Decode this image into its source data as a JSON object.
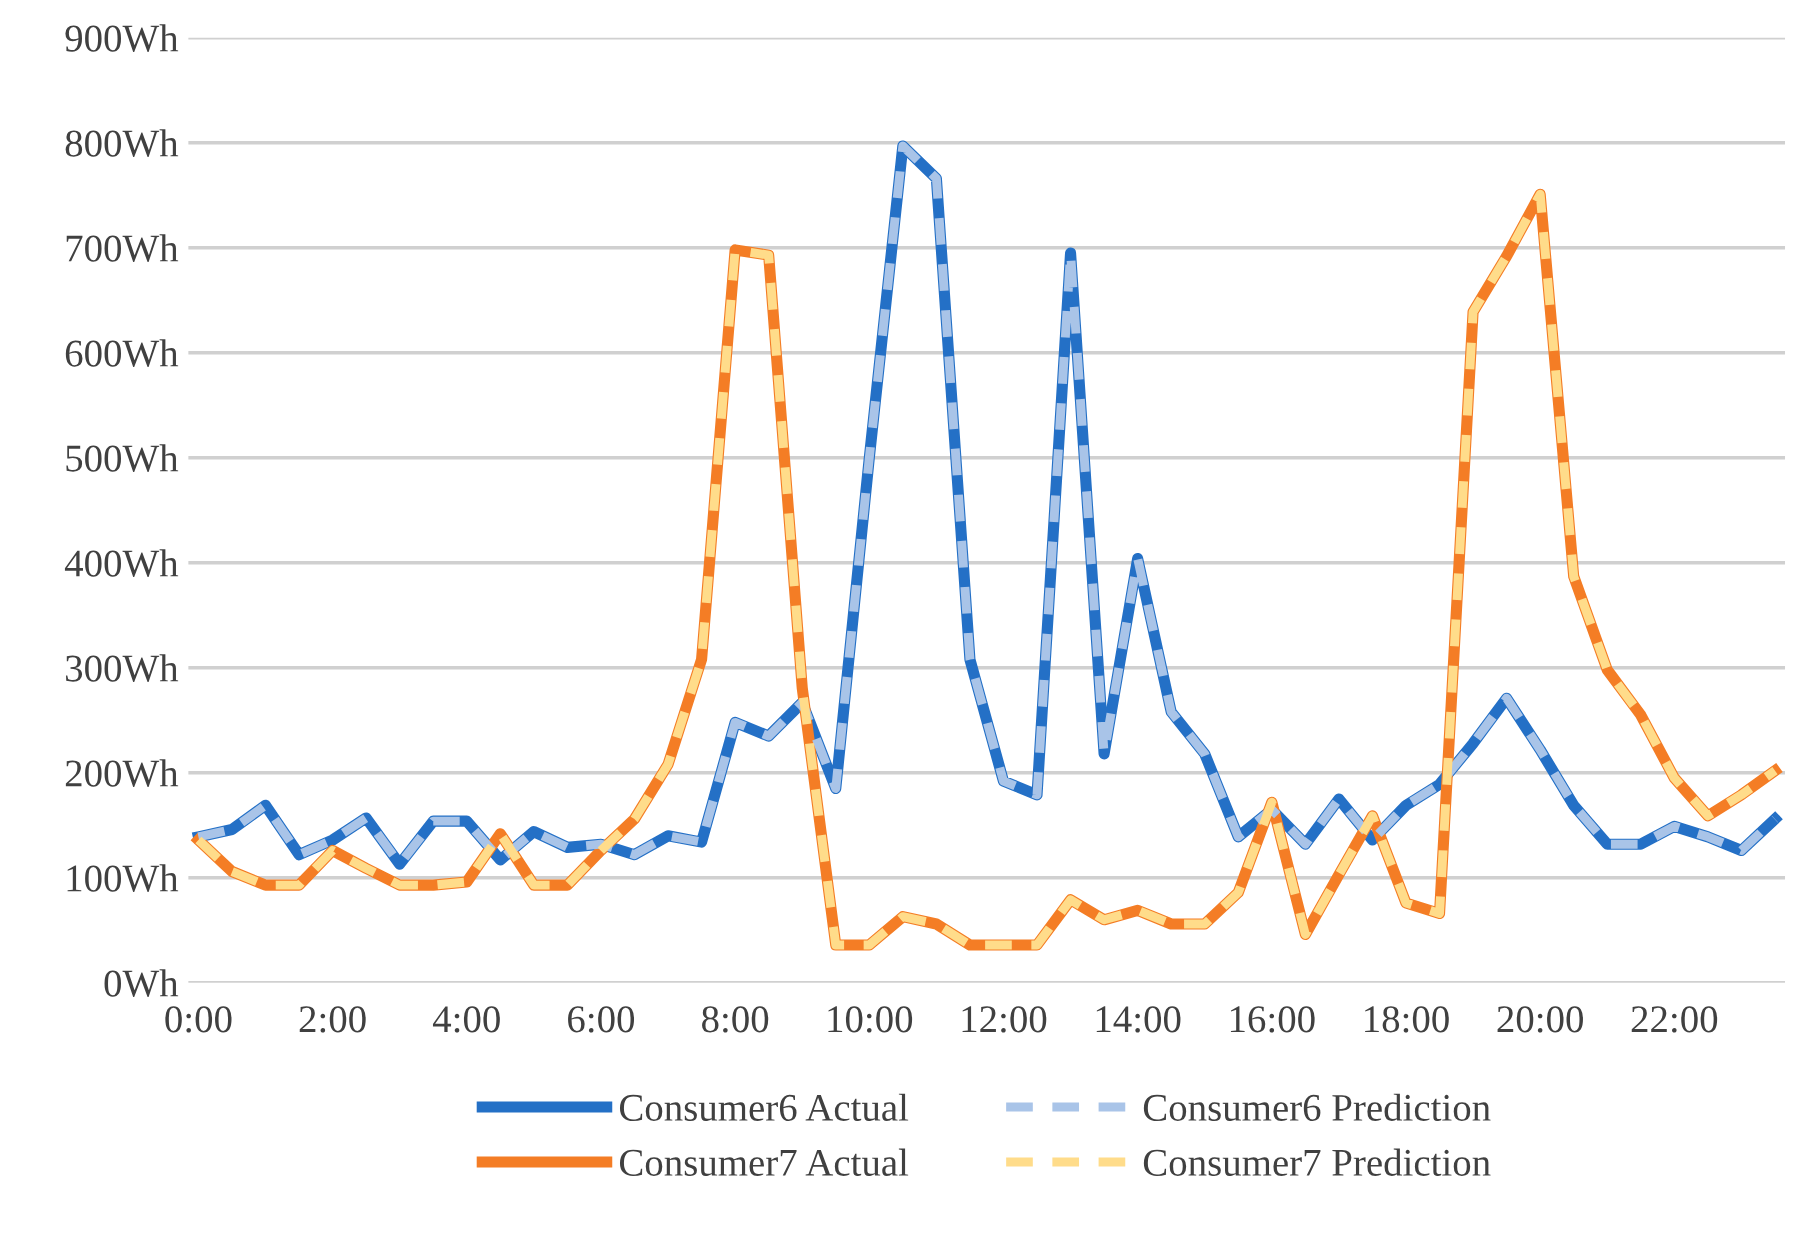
{
  "chart_data": {
    "type": "line",
    "categories": [
      "0:00",
      null,
      null,
      null,
      "2:00",
      null,
      null,
      null,
      "4:00",
      null,
      null,
      null,
      "6:00",
      null,
      null,
      null,
      "8:00",
      null,
      null,
      null,
      "10:00",
      null,
      null,
      null,
      "12:00",
      null,
      null,
      null,
      "14:00",
      null,
      null,
      null,
      "16:00",
      null,
      null,
      null,
      "18:00",
      null,
      null,
      null,
      "20:00",
      null,
      null,
      null,
      "22:00",
      null,
      null,
      null
    ],
    "series": [
      {
        "name": "Consumer6 Actual",
        "color": "#2470c6",
        "line_style": "solid",
        "values": [
          139,
          146,
          169,
          122,
          136,
          157,
          113,
          154,
          154,
          117,
          144,
          129,
          132,
          122,
          140,
          134,
          248,
          235,
          267,
          185,
          500,
          797,
          766,
          308,
          192,
          179,
          695,
          218,
          404,
          258,
          218,
          139,
          165,
          132,
          175,
          136,
          169,
          189,
          228,
          271,
          222,
          169,
          132,
          132,
          149,
          139,
          126,
          156
        ]
      },
      {
        "name": "Consumer7 Actual",
        "color": "#f47d25",
        "line_style": "solid",
        "values": [
          136,
          106,
          93,
          93,
          126,
          109,
          93,
          93,
          96,
          142,
          93,
          93,
          126,
          156,
          208,
          308,
          698,
          693,
          281,
          36,
          36,
          63,
          56,
          36,
          36,
          36,
          79,
          60,
          69,
          56,
          56,
          86,
          172,
          46,
          103,
          159,
          76,
          66,
          639,
          692,
          751,
          387,
          298,
          255,
          195,
          159,
          179,
          202
        ]
      },
      {
        "name": "Consumer6 Prediction",
        "color": "#a9c4e8",
        "line_style": "dashed",
        "values": [
          139,
          146,
          169,
          122,
          136,
          157,
          113,
          154,
          154,
          117,
          144,
          129,
          132,
          122,
          140,
          134,
          248,
          235,
          267,
          185,
          500,
          797,
          766,
          308,
          192,
          179,
          695,
          218,
          404,
          258,
          218,
          139,
          165,
          132,
          175,
          136,
          169,
          189,
          228,
          271,
          222,
          169,
          132,
          132,
          149,
          139,
          126,
          156
        ]
      },
      {
        "name": "Consumer7 Prediction",
        "color": "#ffdc8a",
        "line_style": "dashed",
        "values": [
          136,
          106,
          93,
          93,
          126,
          109,
          93,
          93,
          96,
          142,
          93,
          93,
          126,
          156,
          208,
          308,
          698,
          693,
          281,
          36,
          36,
          63,
          56,
          36,
          36,
          36,
          79,
          60,
          69,
          56,
          56,
          86,
          172,
          46,
          103,
          159,
          76,
          66,
          639,
          692,
          751,
          387,
          298,
          255,
          195,
          159,
          179,
          202
        ]
      }
    ],
    "ylim": [
      0,
      900
    ],
    "yticks": [
      {
        "value": 0,
        "label": "0Wh"
      },
      {
        "value": 100,
        "label": "100Wh"
      },
      {
        "value": 200,
        "label": "200Wh"
      },
      {
        "value": 300,
        "label": "300Wh"
      },
      {
        "value": 400,
        "label": "400Wh"
      },
      {
        "value": 500,
        "label": "500Wh"
      },
      {
        "value": 600,
        "label": "600Wh"
      },
      {
        "value": 700,
        "label": "700Wh"
      },
      {
        "value": 800,
        "label": "800Wh"
      },
      {
        "value": 900,
        "label": "900Wh"
      }
    ],
    "grid": "y",
    "legend": "bottom",
    "marker": "none"
  }
}
